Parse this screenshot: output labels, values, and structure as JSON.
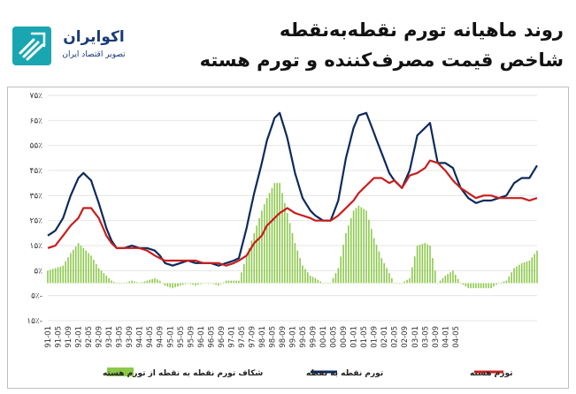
{
  "header": {
    "logo_name": "اکوایران",
    "logo_tagline": "تصویر اقتصاد ایران",
    "title_line1": "روند ماهیانه تورم نقطه‌به‌نقطه",
    "title_line2": "شاخص قیمت مصرف‌کننده و تورم هسته"
  },
  "colors": {
    "headline": "#0d2a5c",
    "core": "#c81e1e",
    "gap": "#8cc84b",
    "brand": "#19a6b1",
    "brand_text": "#1a3a78"
  },
  "chart_data": {
    "type": "line",
    "title": "",
    "xlabel": "",
    "ylabel": "",
    "ylim": [
      -15,
      75
    ],
    "yticks": [
      -15,
      -5,
      5,
      15,
      25,
      35,
      45,
      55,
      65,
      75
    ],
    "ytick_labels": [
      "۱۵٪-",
      "۵٪-",
      "۵٪",
      "۱۵٪",
      "۲۵٪",
      "۳۵٪",
      "۴۵٪",
      "۵۵٪",
      "۶۵٪",
      "۷۵٪"
    ],
    "x_tick_labels": [
      "91-01",
      "91-05",
      "91-09",
      "92-01",
      "92-05",
      "92-09",
      "93-01",
      "93-05",
      "93-09",
      "94-01",
      "94-05",
      "94-09",
      "95-01",
      "95-05",
      "95-09",
      "96-01",
      "96-05",
      "96-09",
      "97-01",
      "97-05",
      "97-09",
      "98-01",
      "98-05",
      "98-09",
      "99-01",
      "99-05",
      "99-09",
      "00-01",
      "00-05",
      "00-09",
      "01-01",
      "01-05",
      "01-09",
      "02-01",
      "02-05",
      "02-09",
      "03-01",
      "03-05",
      "03-09",
      "04-01",
      "04-05"
    ],
    "grid": true,
    "legend_position": "bottom",
    "legend": {
      "core": "تورم هسته",
      "headline": "تورم نقطه به نقطه",
      "gap": "شکاف تورم نقطه به نقطه از تورم هسته"
    },
    "series": [
      {
        "key": "headline",
        "name": "تورم نقطه به نقطه",
        "kind": "line",
        "color": "#0d2a5c",
        "knots": [
          [
            0,
            19
          ],
          [
            3,
            21
          ],
          [
            6,
            26
          ],
          [
            9,
            35
          ],
          [
            12,
            42
          ],
          [
            14,
            44
          ],
          [
            17,
            41
          ],
          [
            20,
            32
          ],
          [
            23,
            22
          ],
          [
            25,
            17
          ],
          [
            27,
            14
          ],
          [
            30,
            14
          ],
          [
            33,
            15
          ],
          [
            36,
            14
          ],
          [
            39,
            14
          ],
          [
            42,
            13
          ],
          [
            44,
            11
          ],
          [
            46,
            8
          ],
          [
            49,
            7
          ],
          [
            52,
            8
          ],
          [
            55,
            9
          ],
          [
            58,
            8
          ],
          [
            61,
            8
          ],
          [
            64,
            8
          ],
          [
            67,
            7
          ],
          [
            70,
            8
          ],
          [
            73,
            9
          ],
          [
            75,
            10
          ],
          [
            78,
            22
          ],
          [
            81,
            36
          ],
          [
            84,
            48
          ],
          [
            86,
            57
          ],
          [
            89,
            66
          ],
          [
            91,
            68
          ],
          [
            94,
            58
          ],
          [
            97,
            44
          ],
          [
            100,
            34
          ],
          [
            103,
            29
          ],
          [
            105,
            27
          ],
          [
            108,
            25
          ],
          [
            111,
            25
          ],
          [
            114,
            33
          ],
          [
            117,
            50
          ],
          [
            120,
            62
          ],
          [
            122,
            67
          ],
          [
            125,
            68
          ],
          [
            128,
            60
          ],
          [
            131,
            52
          ],
          [
            134,
            44
          ],
          [
            136,
            41
          ],
          [
            139,
            38
          ],
          [
            142,
            45
          ],
          [
            145,
            59
          ],
          [
            148,
            62
          ],
          [
            150,
            64
          ],
          [
            153,
            48
          ],
          [
            156,
            48
          ],
          [
            159,
            46
          ],
          [
            162,
            38
          ],
          [
            165,
            34
          ],
          [
            168,
            32
          ],
          [
            171,
            33
          ],
          [
            174,
            33
          ],
          [
            177,
            34
          ],
          [
            180,
            35
          ],
          [
            183,
            40
          ],
          [
            186,
            42
          ],
          [
            189,
            42
          ],
          [
            192,
            47
          ]
        ]
      },
      {
        "key": "core",
        "name": "تورم هسته",
        "kind": "line",
        "color": "#c81e1e",
        "knots": [
          [
            0,
            14
          ],
          [
            3,
            15
          ],
          [
            6,
            19
          ],
          [
            9,
            23
          ],
          [
            12,
            26
          ],
          [
            14,
            30
          ],
          [
            17,
            30
          ],
          [
            20,
            26
          ],
          [
            23,
            19
          ],
          [
            25,
            16
          ],
          [
            27,
            14
          ],
          [
            30,
            14
          ],
          [
            33,
            14
          ],
          [
            36,
            14
          ],
          [
            39,
            13
          ],
          [
            42,
            11
          ],
          [
            44,
            10
          ],
          [
            46,
            9
          ],
          [
            49,
            9
          ],
          [
            52,
            9
          ],
          [
            55,
            9
          ],
          [
            58,
            9
          ],
          [
            61,
            8
          ],
          [
            64,
            8
          ],
          [
            67,
            8
          ],
          [
            70,
            7
          ],
          [
            73,
            8
          ],
          [
            75,
            9
          ],
          [
            78,
            11
          ],
          [
            81,
            16
          ],
          [
            84,
            19
          ],
          [
            86,
            23
          ],
          [
            89,
            26
          ],
          [
            91,
            28
          ],
          [
            94,
            30
          ],
          [
            97,
            28
          ],
          [
            100,
            27
          ],
          [
            103,
            26
          ],
          [
            105,
            25
          ],
          [
            108,
            25
          ],
          [
            111,
            25
          ],
          [
            114,
            27
          ],
          [
            117,
            30
          ],
          [
            120,
            33
          ],
          [
            122,
            36
          ],
          [
            125,
            39
          ],
          [
            128,
            42
          ],
          [
            131,
            42
          ],
          [
            134,
            40
          ],
          [
            136,
            41
          ],
          [
            139,
            38
          ],
          [
            142,
            43
          ],
          [
            145,
            44
          ],
          [
            148,
            46
          ],
          [
            150,
            49
          ],
          [
            153,
            48
          ],
          [
            156,
            45
          ],
          [
            159,
            41
          ],
          [
            162,
            38
          ],
          [
            165,
            36
          ],
          [
            168,
            34
          ],
          [
            171,
            35
          ],
          [
            174,
            35
          ],
          [
            177,
            34
          ],
          [
            180,
            34
          ],
          [
            183,
            34
          ],
          [
            186,
            34
          ],
          [
            189,
            33
          ],
          [
            192,
            34
          ]
        ]
      },
      {
        "key": "gap",
        "name": "شکاف تورم نقطه به نقطه از تورم هسته",
        "kind": "bar",
        "color": "#8cc84b",
        "knots": [
          [
            0,
            5
          ],
          [
            3,
            6
          ],
          [
            6,
            7
          ],
          [
            9,
            12
          ],
          [
            12,
            16
          ],
          [
            14,
            14
          ],
          [
            17,
            11
          ],
          [
            20,
            6
          ],
          [
            23,
            3
          ],
          [
            25,
            1
          ],
          [
            27,
            0
          ],
          [
            30,
            0
          ],
          [
            33,
            1
          ],
          [
            36,
            0
          ],
          [
            39,
            1
          ],
          [
            42,
            2
          ],
          [
            44,
            1
          ],
          [
            46,
            -1
          ],
          [
            49,
            -2
          ],
          [
            52,
            -1
          ],
          [
            55,
            0
          ],
          [
            58,
            -1
          ],
          [
            61,
            0
          ],
          [
            64,
            0
          ],
          [
            67,
            -1
          ],
          [
            70,
            1
          ],
          [
            73,
            1
          ],
          [
            75,
            1
          ],
          [
            78,
            11
          ],
          [
            81,
            20
          ],
          [
            84,
            29
          ],
          [
            86,
            34
          ],
          [
            89,
            40
          ],
          [
            91,
            40
          ],
          [
            94,
            28
          ],
          [
            97,
            16
          ],
          [
            100,
            7
          ],
          [
            103,
            3
          ],
          [
            105,
            2
          ],
          [
            108,
            0
          ],
          [
            111,
            0
          ],
          [
            114,
            6
          ],
          [
            117,
            20
          ],
          [
            120,
            29
          ],
          [
            122,
            31
          ],
          [
            125,
            29
          ],
          [
            128,
            18
          ],
          [
            131,
            10
          ],
          [
            134,
            4
          ],
          [
            136,
            0
          ],
          [
            139,
            0
          ],
          [
            142,
            2
          ],
          [
            145,
            15
          ],
          [
            148,
            16
          ],
          [
            150,
            15
          ],
          [
            153,
            0
          ],
          [
            156,
            3
          ],
          [
            159,
            5
          ],
          [
            162,
            0
          ],
          [
            165,
            -2
          ],
          [
            168,
            -2
          ],
          [
            171,
            -2
          ],
          [
            174,
            -2
          ],
          [
            177,
            0
          ],
          [
            180,
            1
          ],
          [
            183,
            6
          ],
          [
            186,
            8
          ],
          [
            189,
            9
          ],
          [
            192,
            13
          ]
        ]
      }
    ]
  }
}
